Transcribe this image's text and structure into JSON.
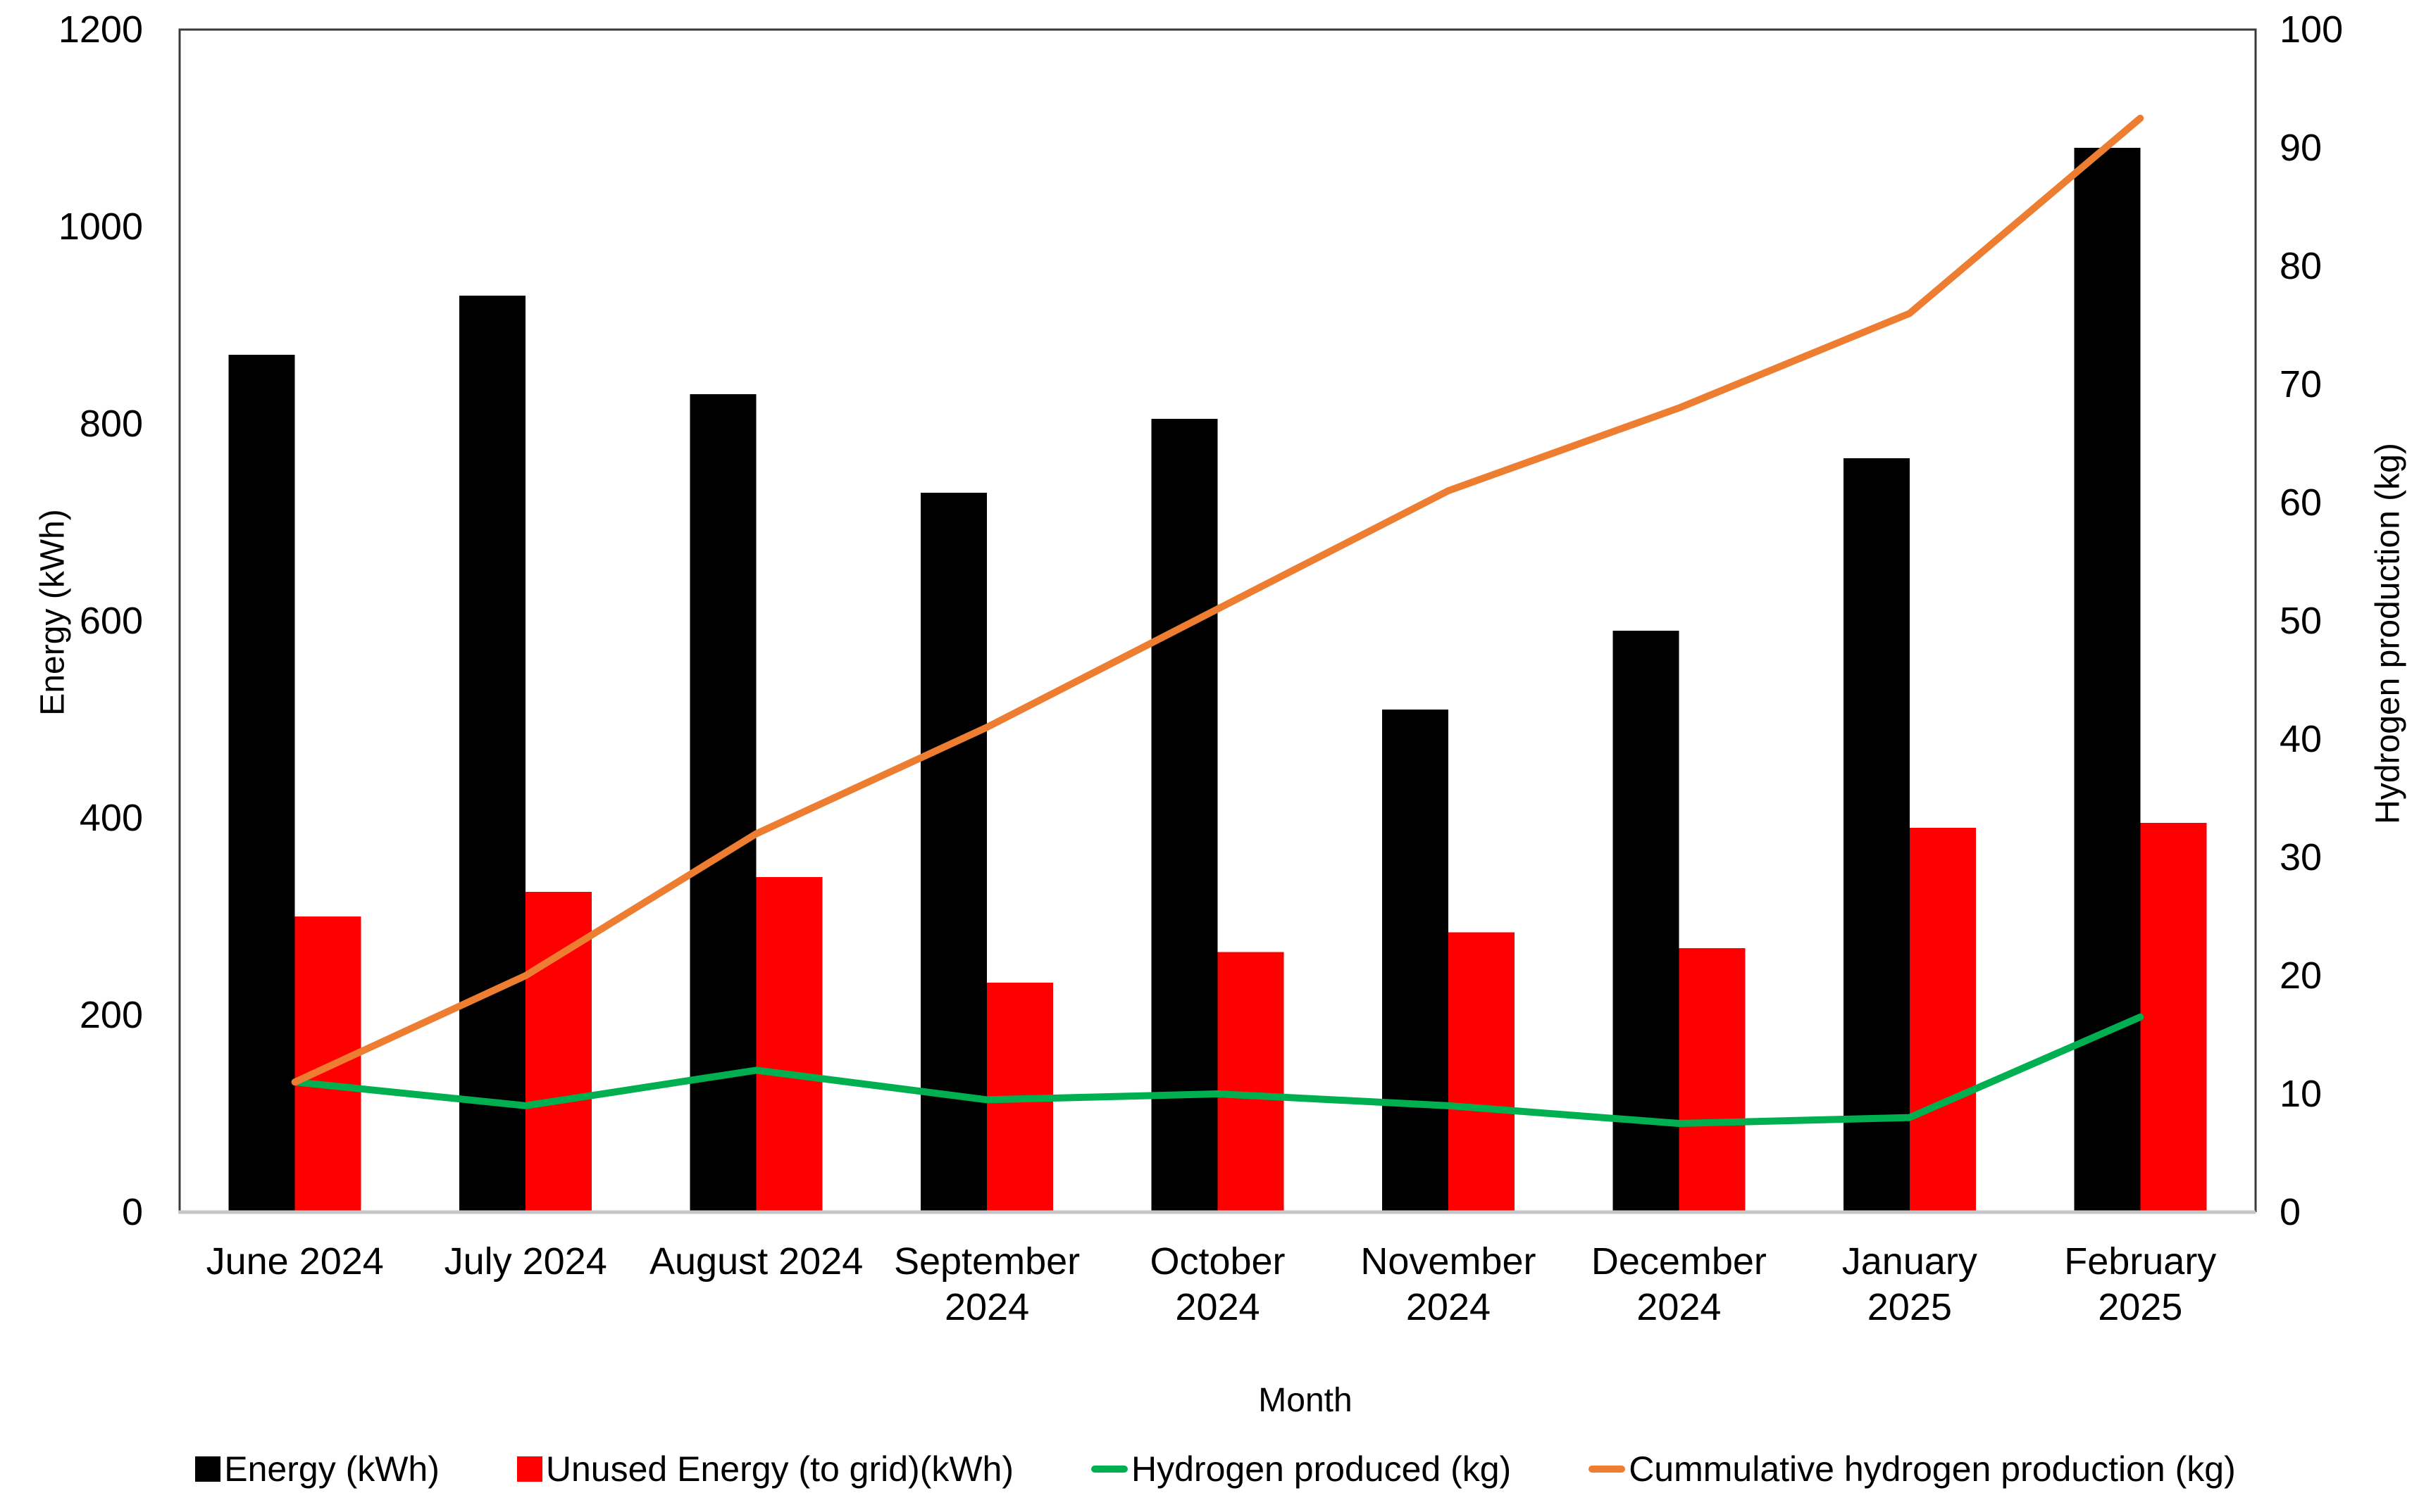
{
  "chart_data": {
    "type": "bar",
    "subtype": "combo-bar-line-dual-axis",
    "title": "",
    "categories": [
      {
        "label": "June 2024",
        "lines": [
          "June 2024"
        ]
      },
      {
        "label": "July 2024",
        "lines": [
          "July 2024"
        ]
      },
      {
        "label": "August 2024",
        "lines": [
          "August 2024"
        ]
      },
      {
        "label": "September 2024",
        "lines": [
          "September",
          "2024"
        ]
      },
      {
        "label": "October 2024",
        "lines": [
          "October",
          "2024"
        ]
      },
      {
        "label": "November 2024",
        "lines": [
          "November",
          "2024"
        ]
      },
      {
        "label": "December 2024",
        "lines": [
          "December",
          "2024"
        ]
      },
      {
        "label": "January 2025",
        "lines": [
          "January",
          "2025"
        ]
      },
      {
        "label": "February 2025",
        "lines": [
          "February",
          "2025"
        ]
      }
    ],
    "series": [
      {
        "name": "Energy (kWh)",
        "type": "bar",
        "axis": "left",
        "color": "#000000",
        "values": [
          870,
          930,
          830,
          730,
          805,
          510,
          590,
          765,
          1080
        ]
      },
      {
        "name": "Unused Energy (to grid)(kWh)",
        "type": "bar",
        "axis": "left",
        "color": "#FF0000",
        "values": [
          300,
          325,
          340,
          233,
          264,
          284,
          268,
          390,
          395
        ]
      },
      {
        "name": "Hydrogen produced (kg)",
        "type": "line",
        "axis": "right",
        "color": "#00B050",
        "values": [
          11,
          9,
          12,
          9.5,
          10,
          9,
          7.5,
          8,
          16.5
        ]
      },
      {
        "name": "Cummulative hydrogen production (kg)",
        "type": "line",
        "axis": "right",
        "color": "#ED7D31",
        "values": [
          11,
          20,
          32,
          41,
          51,
          61,
          68,
          76,
          92.5
        ]
      }
    ],
    "left_axis": {
      "title": "Energy (kWh)",
      "min": 0,
      "max": 1200,
      "step": 200
    },
    "right_axis": {
      "title": "Hydrogen production (kg)",
      "min": 0,
      "max": 100,
      "step": 10
    },
    "x_axis": {
      "title": "Month"
    },
    "legend_position": "bottom",
    "grid": false,
    "plot_border_color": "#3a3a3a",
    "baseline_color": "#c6c6c6",
    "background_color": "#ffffff"
  }
}
